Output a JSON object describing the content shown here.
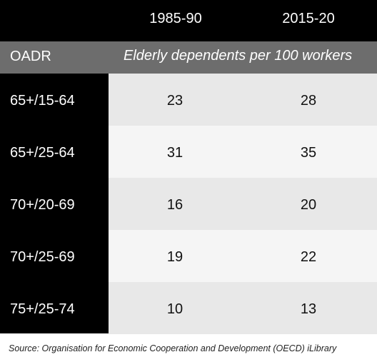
{
  "chart_data": {
    "type": "table",
    "header": {
      "columns": [
        "1985-90",
        "2015-20"
      ]
    },
    "subheader": {
      "label": "OADR",
      "units": "Elderly dependents per 100 workers"
    },
    "rows": [
      {
        "label": "65+/15-64",
        "values": [
          23,
          28
        ]
      },
      {
        "label": "65+/25-64",
        "values": [
          31,
          35
        ]
      },
      {
        "label": "70+/20-69",
        "values": [
          16,
          20
        ]
      },
      {
        "label": "70+/25-69",
        "values": [
          19,
          22
        ]
      },
      {
        "label": "75+/25-74",
        "values": [
          10,
          13
        ]
      }
    ],
    "source": "Source: Organisation for Economic Cooperation and Development (OECD) iLibrary"
  }
}
